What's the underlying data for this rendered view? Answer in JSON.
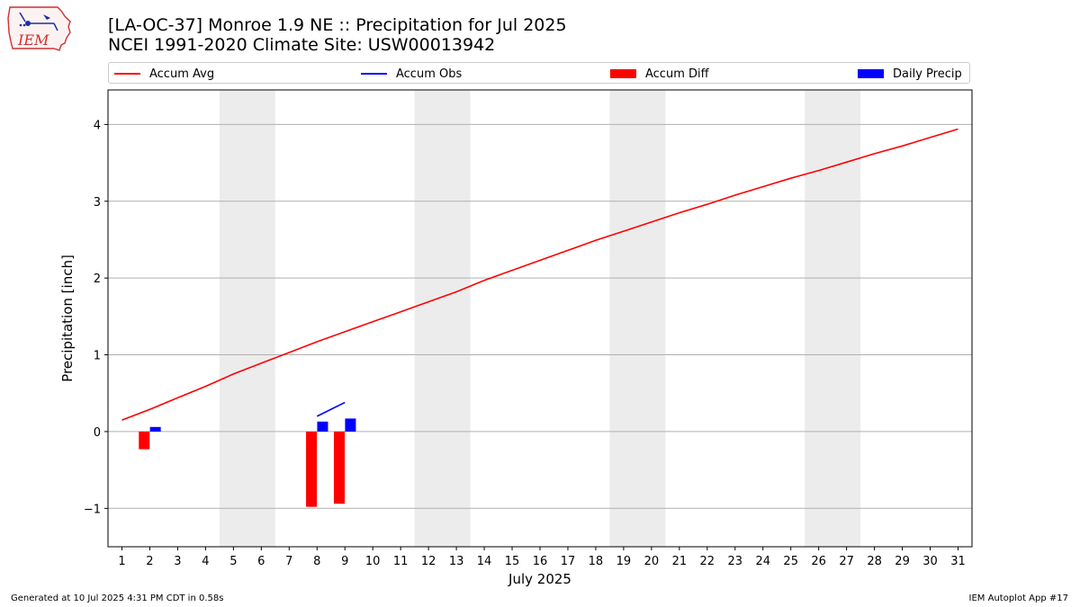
{
  "header": {
    "title_line1": "[LA-OC-37] Monroe 1.9 NE :: Precipitation for Jul 2025",
    "title_line2": "NCEI 1991-2020 Climate Site: USW00013942",
    "logo_text": "IEM"
  },
  "footer": {
    "left": "Generated at 10 Jul 2025 4:31 PM CDT in 0.58s",
    "right": "IEM Autoplot App #17"
  },
  "chart_data": {
    "type": "line",
    "xlabel": "July 2025",
    "ylabel": "Precipitation [inch]",
    "xlim": [
      0.5,
      31.5
    ],
    "ylim": [
      -1.5,
      4.45
    ],
    "x_ticks": [
      1,
      2,
      3,
      4,
      5,
      6,
      7,
      8,
      9,
      10,
      11,
      12,
      13,
      14,
      15,
      16,
      17,
      18,
      19,
      20,
      21,
      22,
      23,
      24,
      25,
      26,
      27,
      28,
      29,
      30,
      31
    ],
    "y_ticks": [
      -1,
      0,
      1,
      2,
      3,
      4
    ],
    "y_tick_labels": [
      "−1",
      "0",
      "1",
      "2",
      "3",
      "4"
    ],
    "grid": "horizontal",
    "legend_position": "top, above plot",
    "weekend_shading": [
      [
        4.5,
        6.5
      ],
      [
        11.5,
        13.5
      ],
      [
        18.5,
        20.5
      ],
      [
        25.5,
        27.5
      ]
    ],
    "legend": [
      {
        "label": "Accum Avg",
        "kind": "line",
        "color": "#ff0000"
      },
      {
        "label": "Accum Obs",
        "kind": "line",
        "color": "#0000ff"
      },
      {
        "label": "Accum Diff",
        "kind": "bar",
        "color": "#ff0000"
      },
      {
        "label": "Daily Precip",
        "kind": "bar",
        "color": "#0000ff"
      }
    ],
    "series": [
      {
        "name": "Accum Avg",
        "color": "#ff0000",
        "x": [
          1,
          2,
          3,
          4,
          5,
          6,
          7,
          8,
          9,
          10,
          11,
          12,
          13,
          14,
          15,
          16,
          17,
          18,
          19,
          20,
          21,
          22,
          23,
          24,
          25,
          26,
          27,
          28,
          29,
          30,
          31
        ],
        "values": [
          0.15,
          0.29,
          0.44,
          0.59,
          0.75,
          0.89,
          1.03,
          1.17,
          1.3,
          1.43,
          1.56,
          1.69,
          1.82,
          1.97,
          2.1,
          2.23,
          2.36,
          2.49,
          2.61,
          2.73,
          2.85,
          2.96,
          3.08,
          3.19,
          3.3,
          3.4,
          3.51,
          3.62,
          3.72,
          3.83,
          3.94
        ]
      },
      {
        "name": "Accum Obs",
        "color": "#0000ff",
        "x": [
          8,
          9
        ],
        "values": [
          0.2,
          0.38
        ]
      },
      {
        "name": "Accum Diff",
        "color": "#ff0000",
        "x": [
          2,
          8,
          9
        ],
        "values": [
          -0.23,
          -0.98,
          -0.94
        ]
      },
      {
        "name": "Daily Precip",
        "color": "#0000ff",
        "x": [
          2,
          8,
          9
        ],
        "values": [
          0.06,
          0.13,
          0.17
        ]
      }
    ]
  }
}
